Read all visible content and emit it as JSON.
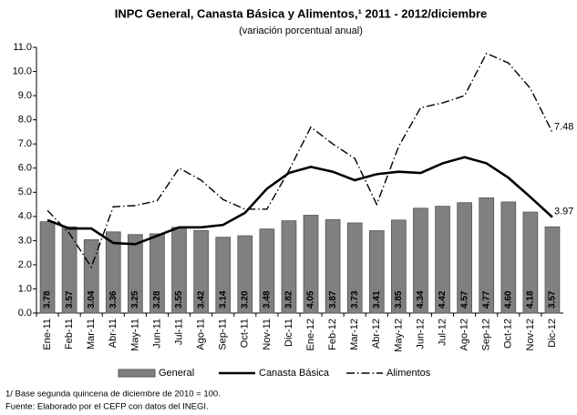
{
  "chart_data": {
    "type": "bar",
    "title": "INPC General, Canasta Básica y Alimentos,¹ 2011 - 2012/diciembre",
    "subtitle": "(variación porcentual anual)",
    "categories": [
      "Ene-11",
      "Feb-11",
      "Mar-11",
      "Abr-11",
      "May-11",
      "Jun-11",
      "Jul-11",
      "Ago-11",
      "Sep-11",
      "Oct-11",
      "Nov-11",
      "Dic-11",
      "Ene-12",
      "Feb-12",
      "Mar-12",
      "Abr-12",
      "May-12",
      "Jun-12",
      "Jul-12",
      "Ago-12",
      "Sep-12",
      "Oct-12",
      "Nov-12",
      "Dic-12"
    ],
    "series": [
      {
        "name": "General",
        "type": "bar",
        "color": "#808080",
        "values": [
          3.78,
          3.57,
          3.04,
          3.36,
          3.25,
          3.28,
          3.55,
          3.42,
          3.14,
          3.2,
          3.48,
          3.82,
          4.05,
          3.87,
          3.73,
          3.41,
          3.85,
          4.34,
          4.42,
          4.57,
          4.77,
          4.6,
          4.18,
          3.57
        ],
        "value_labels": [
          "3.78",
          "3.57",
          "3.04",
          "3.36",
          "3.25",
          "3.28",
          "3.55",
          "3.42",
          "3.14",
          "3.20",
          "3.48",
          "3.82",
          "4.05",
          "3.87",
          "3.73",
          "3.41",
          "3.85",
          "4.34",
          "4.42",
          "4.57",
          "4.77",
          "4.60",
          "4.18",
          "3.57"
        ]
      },
      {
        "name": "Canasta Básica",
        "type": "line",
        "color": "#000000",
        "values": [
          3.85,
          3.5,
          3.5,
          2.9,
          2.85,
          3.2,
          3.55,
          3.55,
          3.65,
          4.15,
          5.15,
          5.8,
          6.05,
          5.85,
          5.5,
          5.75,
          5.85,
          5.8,
          6.2,
          6.45,
          6.2,
          5.6,
          4.8,
          3.97
        ]
      },
      {
        "name": "Alimentos",
        "type": "line",
        "color": "#000000",
        "dash": true,
        "values": [
          4.25,
          3.3,
          1.9,
          4.4,
          4.45,
          4.65,
          6.0,
          5.5,
          4.7,
          4.3,
          4.3,
          5.9,
          7.7,
          7.0,
          6.4,
          4.5,
          6.9,
          8.5,
          8.7,
          9.0,
          10.75,
          10.35,
          9.3,
          7.48
        ]
      }
    ],
    "ylim": [
      0,
      11
    ],
    "yticks": [
      {
        "value": 0,
        "label": "0.0"
      },
      {
        "value": 1,
        "label": "1.0"
      },
      {
        "value": 2,
        "label": "2.0"
      },
      {
        "value": 3,
        "label": "3.0"
      },
      {
        "value": 4,
        "label": "4.0"
      },
      {
        "value": 5,
        "label": "5.0"
      },
      {
        "value": 6,
        "label": "6.0"
      },
      {
        "value": 7,
        "label": "7.0"
      },
      {
        "value": 8,
        "label": "8.0"
      },
      {
        "value": 9,
        "label": "9.0"
      },
      {
        "value": 10,
        "label": "10.0"
      },
      {
        "value": 11,
        "label": "11.0"
      }
    ],
    "notes": [
      "1/ Base segunda quincena de diciembre de 2010 = 100.",
      "Fuente: Elaborado por el CEFP con datos del INEGI."
    ]
  }
}
